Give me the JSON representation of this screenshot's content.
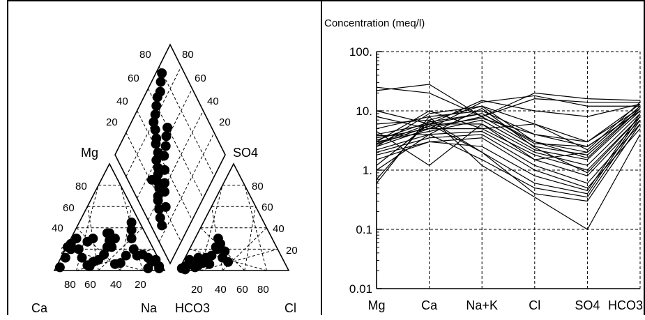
{
  "chart_data": [
    {
      "type": "scatter",
      "chart_kind": "piper diagram",
      "labels": {
        "ca": "Ca",
        "na": "Na",
        "hco3": "HCO3",
        "cl": "Cl",
        "mg": "Mg",
        "so4": "SO4"
      },
      "left_triangle_ticks": [
        "20",
        "40",
        "60",
        "80"
      ],
      "left_base_ticks": [
        "80",
        "60",
        "40",
        "20"
      ],
      "right_triangle_ticks": [
        "80",
        "60",
        "40",
        "20"
      ],
      "right_base_ticks": [
        "20",
        "40",
        "60",
        "80"
      ],
      "diamond_left_ticks": [
        "80",
        "60",
        "40",
        "20"
      ],
      "diamond_right_ticks": [
        "80",
        "60",
        "40",
        "20"
      ],
      "cation_points_pct_na_mg": [
        [
          48,
          35
        ],
        [
          30,
          27
        ],
        [
          35,
          30
        ],
        [
          50,
          35
        ],
        [
          50,
          28
        ],
        [
          55,
          30
        ],
        [
          52,
          22
        ],
        [
          48,
          22
        ],
        [
          70,
          45
        ],
        [
          70,
          38
        ],
        [
          70,
          30
        ],
        [
          65,
          14
        ],
        [
          72,
          20
        ],
        [
          75,
          14
        ],
        [
          80,
          15
        ],
        [
          85,
          12
        ],
        [
          88,
          8
        ],
        [
          92,
          10
        ],
        [
          95,
          4
        ],
        [
          95,
          2
        ],
        [
          20,
          30
        ],
        [
          15,
          25
        ],
        [
          12,
          22
        ],
        [
          15,
          20
        ],
        [
          10,
          12
        ],
        [
          5,
          3
        ],
        [
          30,
          5
        ],
        [
          35,
          8
        ],
        [
          40,
          10
        ],
        [
          45,
          15
        ],
        [
          25,
          12
        ],
        [
          22,
          20
        ],
        [
          55,
          6
        ],
        [
          60,
          7
        ],
        [
          85,
          2
        ],
        [
          32,
          4
        ]
      ],
      "anion_points_pct_cl_so4": [
        [
          5,
          3
        ],
        [
          8,
          5
        ],
        [
          12,
          8
        ],
        [
          15,
          3
        ],
        [
          18,
          5
        ],
        [
          20,
          10
        ],
        [
          22,
          7
        ],
        [
          25,
          12
        ],
        [
          28,
          6
        ],
        [
          30,
          14
        ],
        [
          18,
          12
        ],
        [
          10,
          10
        ],
        [
          3,
          2
        ],
        [
          6,
          1
        ],
        [
          35,
          20
        ],
        [
          38,
          25
        ],
        [
          36,
          30
        ],
        [
          34,
          22
        ],
        [
          42,
          18
        ],
        [
          45,
          8
        ],
        [
          40,
          12
        ]
      ],
      "diamond_points_pct_so4cl_camg": [
        [
          25,
          45
        ],
        [
          30,
          52
        ],
        [
          22,
          55
        ],
        [
          35,
          60
        ],
        [
          40,
          62
        ],
        [
          42,
          68
        ],
        [
          45,
          70
        ],
        [
          48,
          75
        ],
        [
          50,
          80
        ],
        [
          55,
          82
        ],
        [
          60,
          85
        ],
        [
          65,
          88
        ],
        [
          70,
          88
        ],
        [
          75,
          92
        ],
        [
          80,
          95
        ],
        [
          18,
          40
        ],
        [
          20,
          42
        ],
        [
          15,
          35
        ],
        [
          28,
          38
        ],
        [
          32,
          42
        ],
        [
          38,
          48
        ],
        [
          44,
          55
        ],
        [
          50,
          58
        ],
        [
          55,
          62
        ],
        [
          60,
          65
        ],
        [
          10,
          25
        ],
        [
          12,
          30
        ],
        [
          22,
          30
        ],
        [
          26,
          50
        ],
        [
          33,
          55
        ]
      ]
    },
    {
      "type": "line",
      "chart_kind": "schoeller diagram",
      "title": "Concentration (meq/l)",
      "categories": [
        "Mg",
        "Ca",
        "Na+K",
        "Cl",
        "SO4",
        "HCO3"
      ],
      "y_scale": "log",
      "ylim": [
        0.01,
        100
      ],
      "yticks": [
        "100.",
        "10.",
        "1.",
        "0.1",
        "0.01"
      ],
      "ytick_values": [
        100,
        10,
        1,
        0.1,
        0.01
      ],
      "grid": true,
      "series": [
        {
          "values": [
            22,
            28,
            8,
            20,
            16,
            15
          ]
        },
        {
          "values": [
            25,
            20,
            8,
            16,
            14,
            14
          ]
        },
        {
          "values": [
            10,
            6,
            15,
            10,
            8,
            13
          ]
        },
        {
          "values": [
            8,
            5,
            14,
            18,
            12,
            12
          ]
        },
        {
          "values": [
            6,
            7,
            12,
            6,
            3,
            11
          ]
        },
        {
          "values": [
            5,
            8,
            10,
            4,
            2.5,
            10
          ]
        },
        {
          "values": [
            4,
            6,
            9,
            3,
            2,
            12
          ]
        },
        {
          "values": [
            3.5,
            5,
            8,
            2.5,
            1.8,
            11
          ]
        },
        {
          "values": [
            3,
            4.5,
            7,
            2.2,
            1.5,
            10
          ]
        },
        {
          "values": [
            2.8,
            6,
            6,
            2,
            1.2,
            9
          ]
        },
        {
          "values": [
            2.5,
            5,
            5,
            1.8,
            1,
            8
          ]
        },
        {
          "values": [
            2.2,
            4,
            4.5,
            1.5,
            0.8,
            7
          ]
        },
        {
          "values": [
            2,
            3.5,
            4,
            1.2,
            0.6,
            6
          ]
        },
        {
          "values": [
            1.8,
            3,
            3.5,
            1,
            0.5,
            5
          ]
        },
        {
          "values": [
            1.5,
            3,
            2.5,
            0.8,
            0.45,
            9
          ]
        },
        {
          "values": [
            1.2,
            6,
            2,
            0.6,
            0.4,
            8
          ]
        },
        {
          "values": [
            1,
            4,
            1.5,
            0.5,
            0.35,
            7
          ]
        },
        {
          "values": [
            0.7,
            7,
            2,
            0.4,
            0.3,
            6
          ]
        },
        {
          "values": [
            0.6,
            8,
            1.2,
            0.35,
            0.1,
            4
          ]
        },
        {
          "values": [
            4.5,
            1.2,
            6,
            1.5,
            2,
            12
          ]
        },
        {
          "values": [
            3,
            10,
            5,
            6,
            2.2,
            14
          ]
        },
        {
          "values": [
            2.5,
            9,
            12,
            3,
            1.6,
            11
          ]
        },
        {
          "values": [
            3.2,
            6.5,
            9,
            2.8,
            2.5,
            10
          ]
        },
        {
          "values": [
            2.7,
            5.5,
            7.5,
            4,
            3,
            13
          ]
        },
        {
          "values": [
            3.8,
            4,
            11,
            2.4,
            0.9,
            8
          ]
        }
      ]
    }
  ]
}
